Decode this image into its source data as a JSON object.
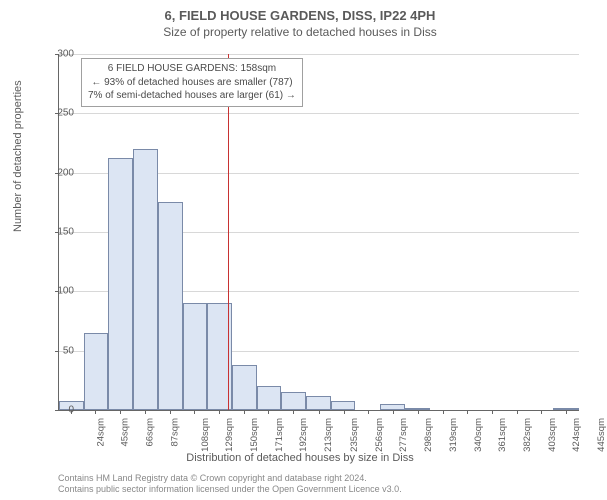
{
  "title_main": "6, FIELD HOUSE GARDENS, DISS, IP22 4PH",
  "title_sub": "Size of property relative to detached houses in Diss",
  "y_axis_label": "Number of detached properties",
  "x_axis_label": "Distribution of detached houses by size in Diss",
  "footer_line1": "Contains HM Land Registry data © Crown copyright and database right 2024.",
  "footer_line2": "Contains public sector information licensed under the Open Government Licence v3.0.",
  "chart": {
    "type": "histogram",
    "ylim": [
      0,
      300
    ],
    "ytick_step": 50,
    "yticks": [
      0,
      50,
      100,
      150,
      200,
      250,
      300
    ],
    "xticks": [
      24,
      45,
      66,
      87,
      108,
      129,
      150,
      171,
      192,
      213,
      235,
      256,
      277,
      298,
      319,
      340,
      361,
      382,
      403,
      424,
      445
    ],
    "xtick_suffix": "sqm",
    "x_data_min": 14,
    "x_data_max": 456,
    "bar_color": "#dce5f3",
    "bar_border_color": "#7a8aa8",
    "grid_color": "#d8d8d8",
    "axis_color": "#666666",
    "background_color": "#ffffff",
    "bars": [
      {
        "x0": 14,
        "x1": 35,
        "value": 8
      },
      {
        "x0": 35,
        "x1": 56,
        "value": 65
      },
      {
        "x0": 56,
        "x1": 77,
        "value": 212
      },
      {
        "x0": 77,
        "x1": 98,
        "value": 220
      },
      {
        "x0": 98,
        "x1": 119,
        "value": 175
      },
      {
        "x0": 119,
        "x1": 140,
        "value": 90
      },
      {
        "x0": 140,
        "x1": 161,
        "value": 90
      },
      {
        "x0": 161,
        "x1": 182,
        "value": 38
      },
      {
        "x0": 182,
        "x1": 203,
        "value": 20
      },
      {
        "x0": 203,
        "x1": 224,
        "value": 15
      },
      {
        "x0": 224,
        "x1": 245,
        "value": 12
      },
      {
        "x0": 245,
        "x1": 266,
        "value": 8
      },
      {
        "x0": 266,
        "x1": 287,
        "value": 0
      },
      {
        "x0": 287,
        "x1": 308,
        "value": 5
      },
      {
        "x0": 308,
        "x1": 329,
        "value": 2
      },
      {
        "x0": 329,
        "x1": 350,
        "value": 0
      },
      {
        "x0": 350,
        "x1": 371,
        "value": 0
      },
      {
        "x0": 371,
        "x1": 392,
        "value": 0
      },
      {
        "x0": 392,
        "x1": 413,
        "value": 0
      },
      {
        "x0": 413,
        "x1": 434,
        "value": 0
      },
      {
        "x0": 434,
        "x1": 456,
        "value": 2
      }
    ],
    "reference_line": {
      "x": 158,
      "color": "#c83232"
    },
    "annotation": {
      "line1": "6 FIELD HOUSE GARDENS: 158sqm",
      "line2": "← 93% of detached houses are smaller (787)",
      "line3": "7% of semi-detached houses are larger (61) →",
      "box_border": "#a0a0a0",
      "box_bg": "#ffffff"
    }
  }
}
